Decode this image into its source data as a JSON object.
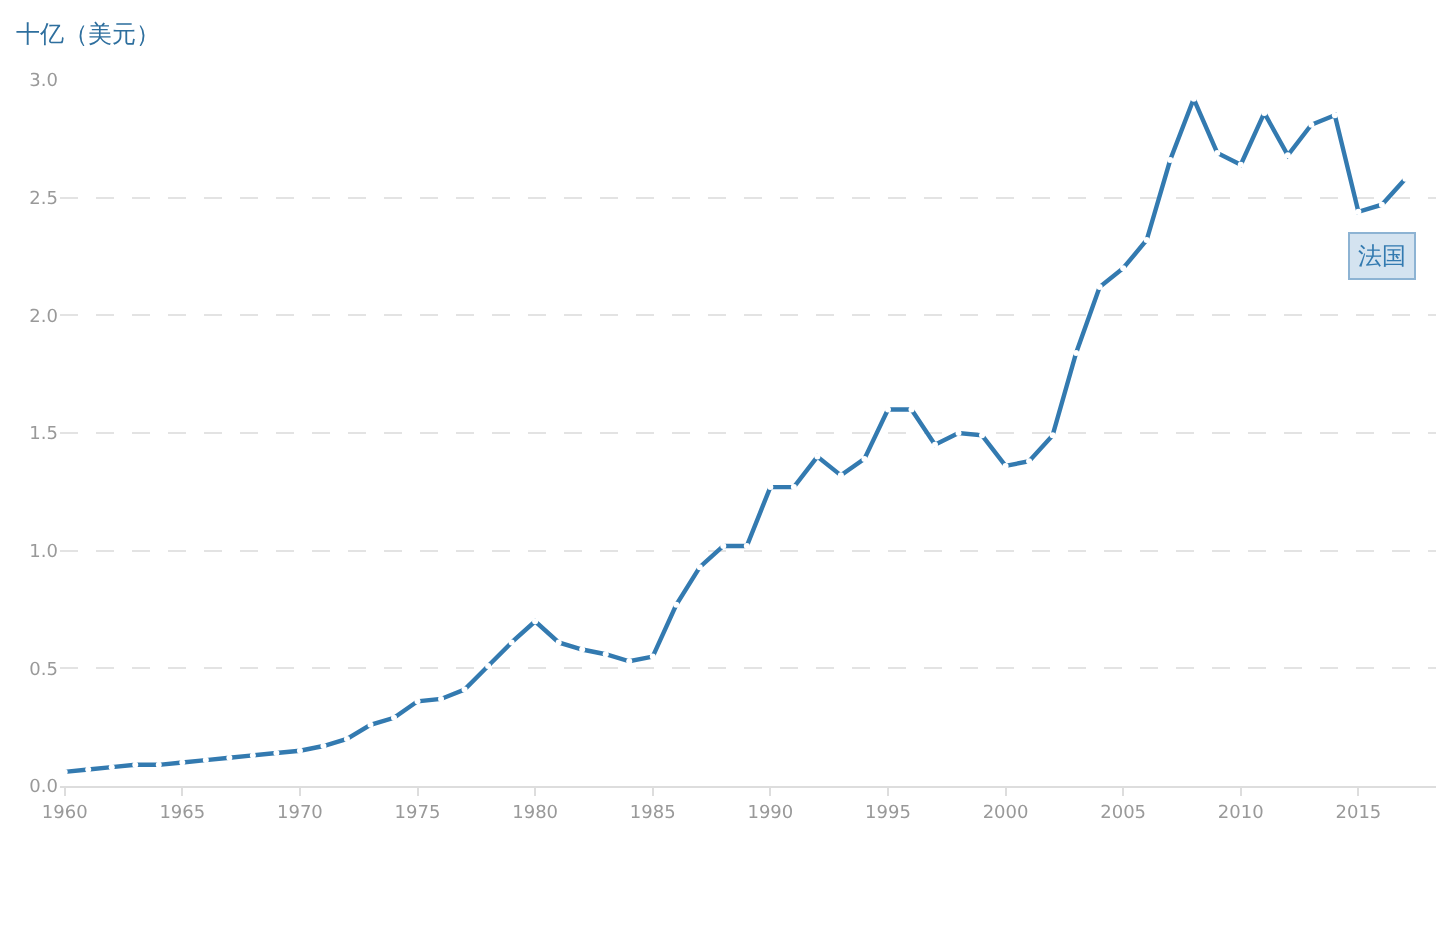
{
  "chart_data": {
    "type": "line",
    "ylabel": "十亿（美元）",
    "x": [
      1960,
      1961,
      1962,
      1963,
      1964,
      1965,
      1966,
      1967,
      1968,
      1969,
      1970,
      1971,
      1972,
      1973,
      1974,
      1975,
      1976,
      1977,
      1978,
      1979,
      1980,
      1981,
      1982,
      1983,
      1984,
      1985,
      1986,
      1987,
      1988,
      1989,
      1990,
      1991,
      1992,
      1993,
      1994,
      1995,
      1996,
      1997,
      1998,
      1999,
      2000,
      2001,
      2002,
      2003,
      2004,
      2005,
      2006,
      2007,
      2008,
      2009,
      2010,
      2011,
      2012,
      2013,
      2014,
      2015,
      2016,
      2017
    ],
    "series": [
      {
        "name": "法国",
        "color": "#337ab0",
        "values": [
          0.06,
          0.07,
          0.08,
          0.09,
          0.09,
          0.1,
          0.11,
          0.12,
          0.13,
          0.14,
          0.15,
          0.17,
          0.2,
          0.26,
          0.29,
          0.36,
          0.37,
          0.41,
          0.51,
          0.61,
          0.7,
          0.61,
          0.58,
          0.56,
          0.53,
          0.55,
          0.77,
          0.93,
          1.02,
          1.02,
          1.27,
          1.27,
          1.4,
          1.32,
          1.39,
          1.6,
          1.6,
          1.45,
          1.5,
          1.49,
          1.36,
          1.38,
          1.49,
          1.84,
          2.12,
          2.2,
          2.32,
          2.66,
          2.92,
          2.69,
          2.64,
          2.86,
          2.68,
          2.81,
          2.85,
          2.44,
          2.47,
          2.58
        ]
      }
    ],
    "xlim": [
      1959.8,
      2018.3
    ],
    "xticks": [
      1960,
      1965,
      1970,
      1975,
      1980,
      1985,
      1990,
      1995,
      2000,
      2005,
      2010,
      2015
    ],
    "ylim": [
      0,
      3
    ],
    "yticks": [
      {
        "value": 0,
        "label": "0.0"
      },
      {
        "value": 0.5,
        "label": "0.5"
      },
      {
        "value": 1,
        "label": "1.0"
      },
      {
        "value": 1.5,
        "label": "1.5"
      },
      {
        "value": 2,
        "label": "2.0"
      },
      {
        "value": 2.5,
        "label": "2.5"
      },
      {
        "value": 3,
        "label": "3.0"
      }
    ],
    "grid": "y",
    "marker": "circle",
    "line_style": "solid"
  }
}
